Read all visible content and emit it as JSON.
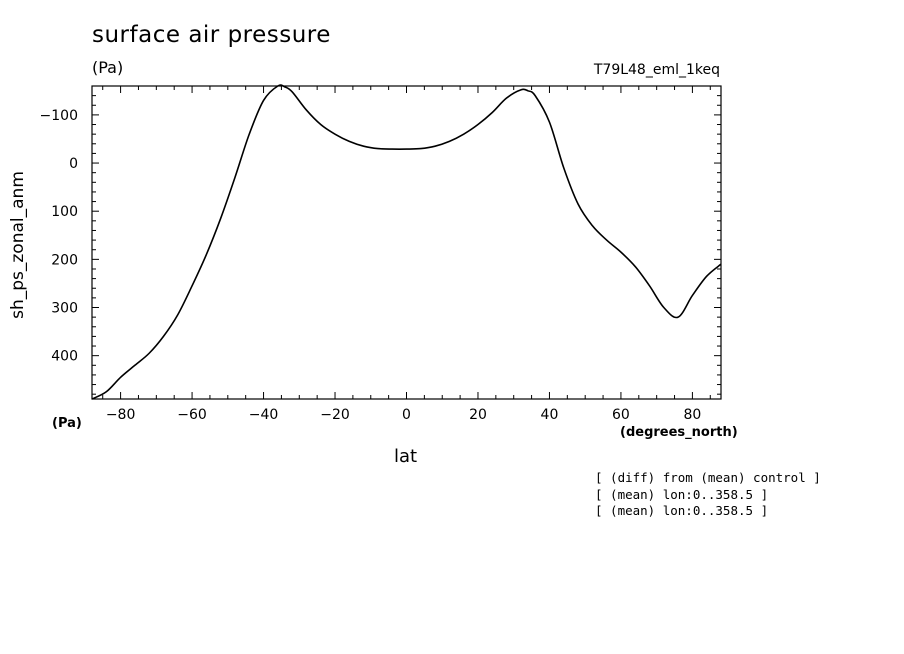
{
  "chart_data": {
    "type": "line",
    "title": "surface air pressure",
    "units": "(Pa)",
    "run": "T79L48_eml_1keq",
    "ylabel": "sh_ps_zonal_anm",
    "xlabel": "lat",
    "xunits": "(degrees_north)",
    "xlim": [
      -88,
      88
    ],
    "ylim": [
      490,
      -160
    ],
    "y_inverted": true,
    "xticks": [
      -80,
      -60,
      -40,
      -20,
      0,
      20,
      40,
      60,
      80
    ],
    "yticks": [
      -100,
      0,
      100,
      200,
      300,
      400
    ],
    "xtick_labels": [
      "−80",
      "−60",
      "−40",
      "−20",
      "0",
      "20",
      "40",
      "60",
      "80"
    ],
    "ytick_labels": [
      "−100",
      "0",
      "100",
      "200",
      "300",
      "400"
    ],
    "grid": false,
    "series": [
      {
        "x": [
          -88,
          -84,
          -80,
          -76,
          -72,
          -68,
          -64,
          -60,
          -56,
          -52,
          -48,
          -44,
          -40,
          -36,
          -34,
          -32,
          -28,
          -24,
          -20,
          -16,
          -12,
          -8,
          -4,
          0,
          4,
          8,
          12,
          16,
          20,
          24,
          28,
          32,
          34,
          36,
          40,
          44,
          48,
          52,
          56,
          60,
          64,
          68,
          72,
          76,
          80,
          84,
          88
        ],
        "y": [
          495,
          475,
          445,
          420,
          395,
          360,
          315,
          255,
          190,
          115,
          30,
          -60,
          -130,
          -160,
          -158,
          -148,
          -110,
          -80,
          -60,
          -45,
          -35,
          -30,
          -29,
          -29,
          -30,
          -35,
          -45,
          -60,
          -80,
          -105,
          -135,
          -152,
          -150,
          -140,
          -85,
          10,
          85,
          130,
          160,
          185,
          215,
          255,
          300,
          320,
          275,
          235,
          210
        ]
      }
    ]
  },
  "notes": [
    "[ (diff) from (mean) control ]",
    "[ (mean) lon:0..358.5 ]",
    "[ (mean) lon:0..358.5 ]"
  ]
}
